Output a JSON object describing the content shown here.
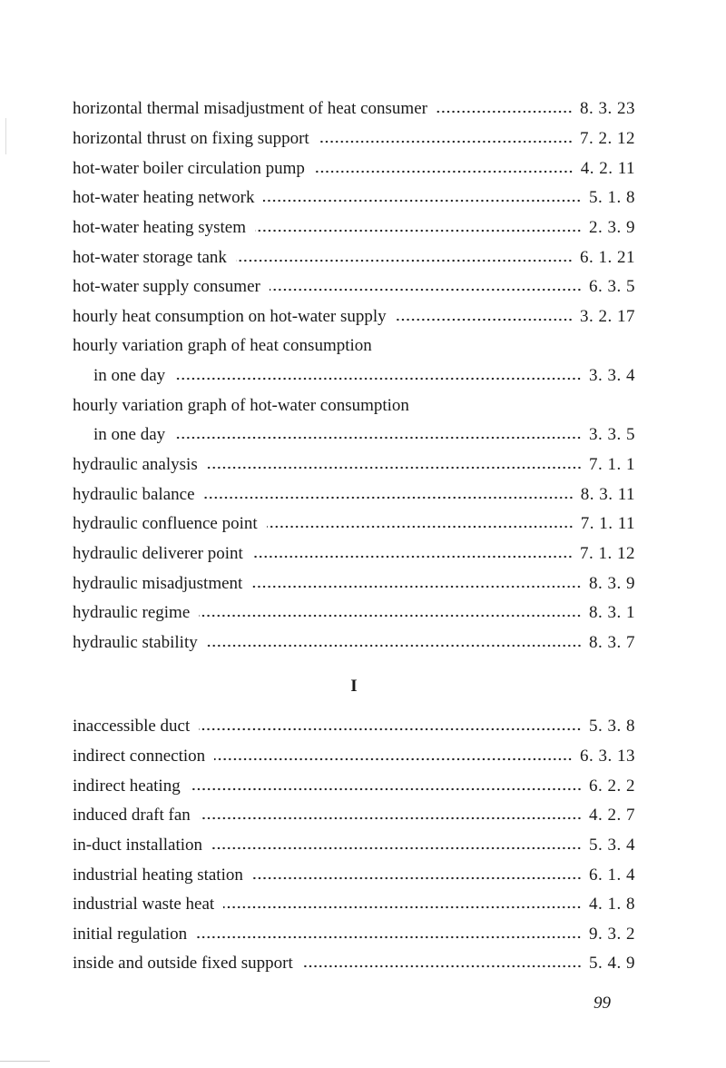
{
  "sections": [
    {
      "entries": [
        {
          "term": "horizontal thermal misadjustment of heat consumer",
          "page": "8. 3. 23"
        },
        {
          "term": "horizontal thrust on fixing support",
          "page": "7. 2. 12"
        },
        {
          "term": "hot-water boiler circulation pump",
          "page": "4. 2. 11"
        },
        {
          "term": "hot-water heating network",
          "page": "5. 1. 8"
        },
        {
          "term": "hot-water heating system",
          "page": "2. 3. 9"
        },
        {
          "term": "hot-water storage tank",
          "page": "6. 1. 21"
        },
        {
          "term": "hot-water supply consumer",
          "page": "6. 3. 5"
        },
        {
          "term": "hourly heat consumption on hot-water supply",
          "page": "3. 2. 17"
        },
        {
          "term": "hourly variation graph of heat consumption",
          "page": ""
        },
        {
          "term": "in one day",
          "page": "3. 3. 4",
          "indent": true
        },
        {
          "term": "hourly variation graph of hot-water consumption",
          "page": ""
        },
        {
          "term": "in one day",
          "page": "3. 3. 5",
          "indent": true
        },
        {
          "term": "hydraulic analysis",
          "page": "7. 1. 1"
        },
        {
          "term": "hydraulic balance",
          "page": "8. 3. 11"
        },
        {
          "term": "hydraulic confluence point",
          "page": "7. 1. 11"
        },
        {
          "term": "hydraulic deliverer point",
          "page": "7. 1. 12"
        },
        {
          "term": "hydraulic misadjustment",
          "page": "8. 3. 9"
        },
        {
          "term": "hydraulic regime",
          "page": "8. 3. 1"
        },
        {
          "term": "hydraulic stability",
          "page": "8. 3. 7"
        }
      ]
    },
    {
      "letter": "I",
      "entries": [
        {
          "term": "inaccessible duct",
          "page": "5. 3. 8"
        },
        {
          "term": "indirect connection",
          "page": "6. 3. 13"
        },
        {
          "term": "indirect heating",
          "page": "6. 2. 2"
        },
        {
          "term": "induced draft fan",
          "page": "4. 2. 7"
        },
        {
          "term": "in-duct installation",
          "page": "5. 3. 4"
        },
        {
          "term": "industrial heating station",
          "page": "6. 1. 4"
        },
        {
          "term": "industrial waste heat",
          "page": "4. 1. 8"
        },
        {
          "term": "initial regulation",
          "page": "9. 3. 2"
        },
        {
          "term": "inside and outside fixed support",
          "page": "5. 4. 9"
        }
      ]
    }
  ],
  "page_number": "99"
}
